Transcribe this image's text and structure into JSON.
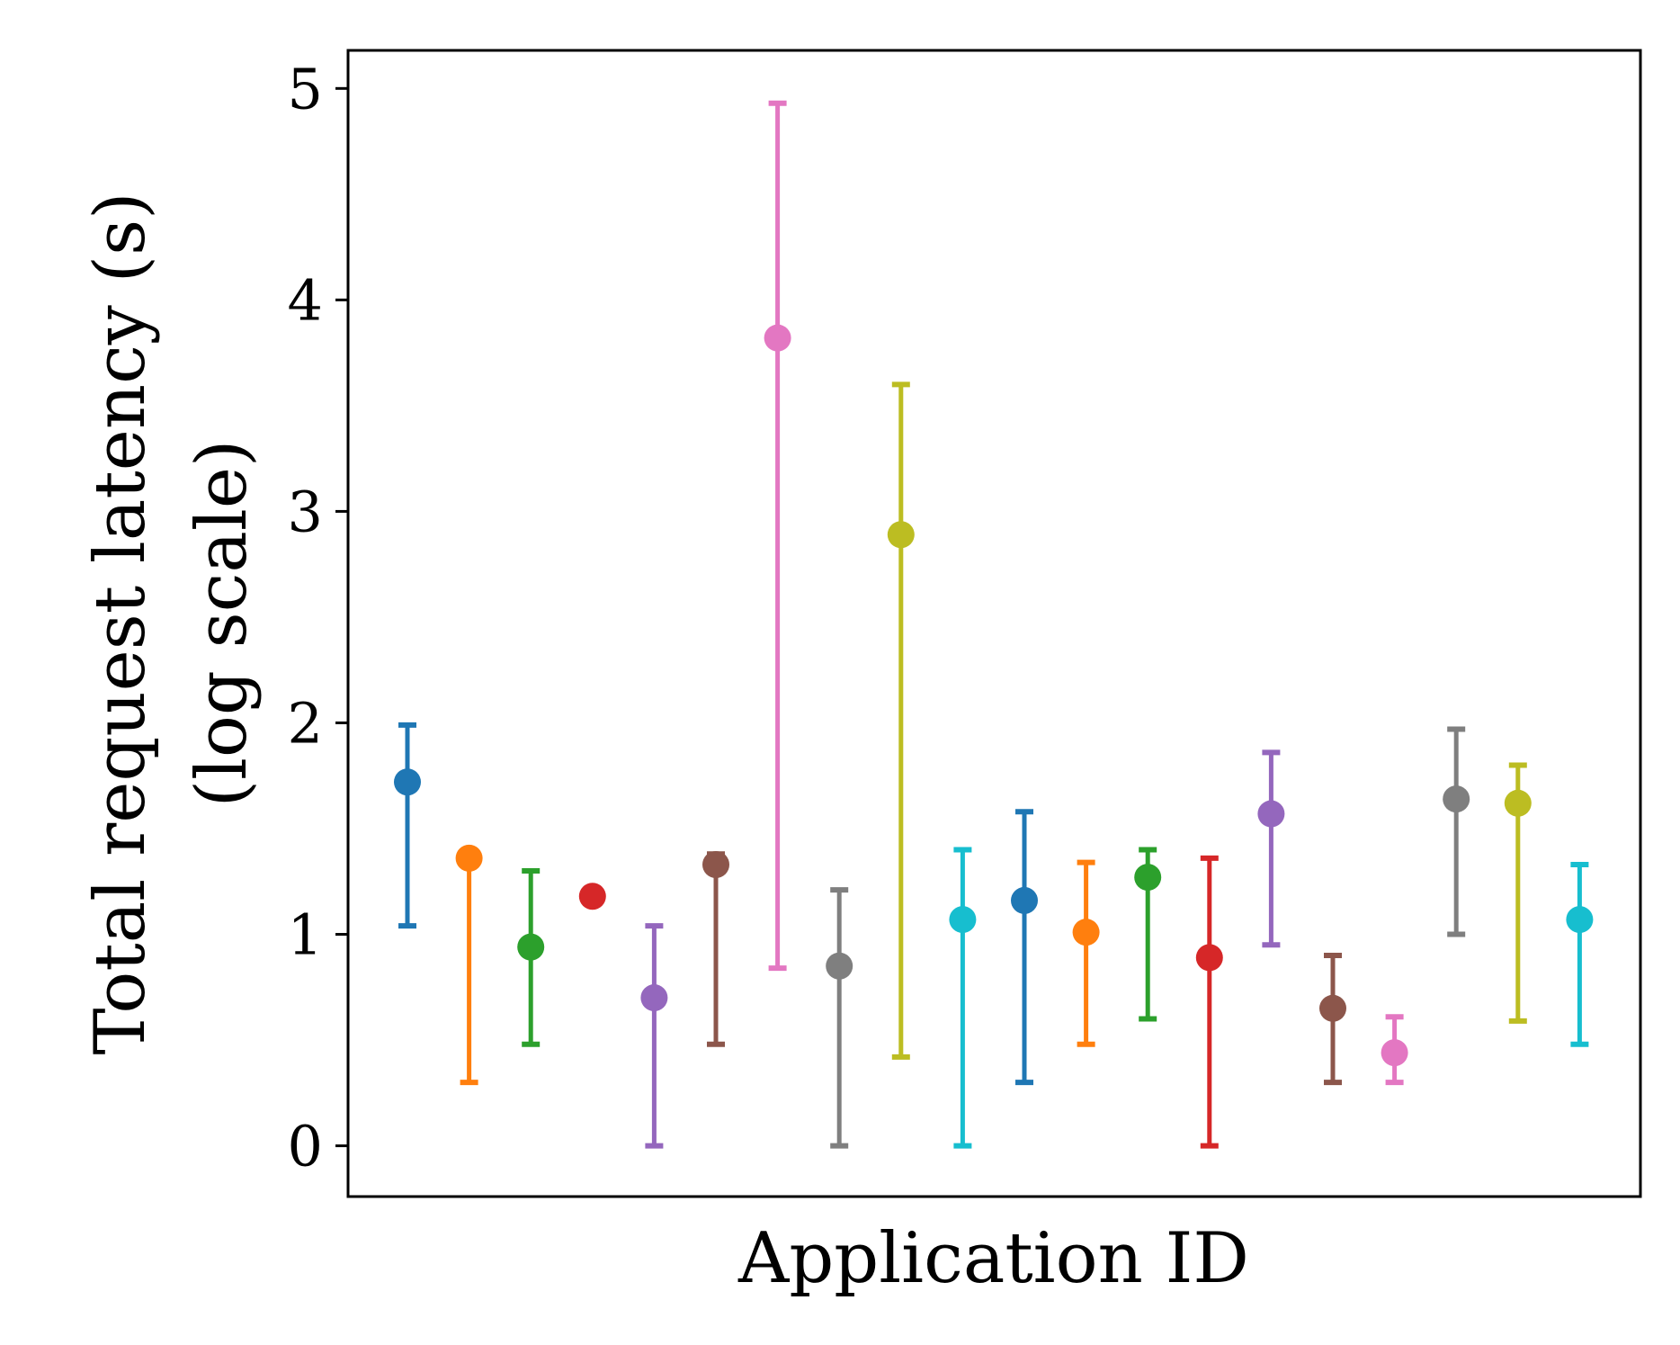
{
  "chart_data": {
    "type": "errorbar",
    "title": "",
    "xlabel": "Application ID",
    "ylabel_line1": "Total request latency (s)",
    "ylabel_line2": "(log scale)",
    "ylim": [
      -0.24,
      5.18
    ],
    "yticks": [
      0,
      1,
      2,
      3,
      4,
      5
    ],
    "ytick_labels": [
      "0",
      "1",
      "2",
      "3",
      "4",
      "5"
    ],
    "grid": false,
    "points": [
      {
        "value": 1.72,
        "low": 1.04,
        "high": 1.99,
        "color": "#1f77b4"
      },
      {
        "value": 1.36,
        "low": 0.3,
        "high": 1.36,
        "color": "#ff7f0e"
      },
      {
        "value": 0.94,
        "low": 0.48,
        "high": 1.3,
        "color": "#2ca02c"
      },
      {
        "value": 1.18,
        "low": 1.18,
        "high": 1.18,
        "color": "#d62728"
      },
      {
        "value": 0.7,
        "low": 0.0,
        "high": 1.04,
        "color": "#9467bd"
      },
      {
        "value": 1.33,
        "low": 0.48,
        "high": 1.38,
        "color": "#8c564b"
      },
      {
        "value": 3.82,
        "low": 0.84,
        "high": 4.93,
        "color": "#e377c2"
      },
      {
        "value": 0.85,
        "low": 0.0,
        "high": 1.21,
        "color": "#7f7f7f"
      },
      {
        "value": 2.89,
        "low": 0.42,
        "high": 3.6,
        "color": "#bcbd22"
      },
      {
        "value": 1.07,
        "low": 0.0,
        "high": 1.4,
        "color": "#17becf"
      },
      {
        "value": 1.16,
        "low": 0.3,
        "high": 1.58,
        "color": "#1f77b4"
      },
      {
        "value": 1.01,
        "low": 0.48,
        "high": 1.34,
        "color": "#ff7f0e"
      },
      {
        "value": 1.27,
        "low": 0.6,
        "high": 1.4,
        "color": "#2ca02c"
      },
      {
        "value": 0.89,
        "low": 0.0,
        "high": 1.36,
        "color": "#d62728"
      },
      {
        "value": 1.57,
        "low": 0.95,
        "high": 1.86,
        "color": "#9467bd"
      },
      {
        "value": 0.65,
        "low": 0.3,
        "high": 0.9,
        "color": "#8c564b"
      },
      {
        "value": 0.44,
        "low": 0.3,
        "high": 0.61,
        "color": "#e377c2"
      },
      {
        "value": 1.64,
        "low": 1.0,
        "high": 1.97,
        "color": "#7f7f7f"
      },
      {
        "value": 1.62,
        "low": 0.59,
        "high": 1.8,
        "color": "#bcbd22"
      },
      {
        "value": 1.07,
        "low": 0.48,
        "high": 1.33,
        "color": "#17becf"
      }
    ]
  }
}
